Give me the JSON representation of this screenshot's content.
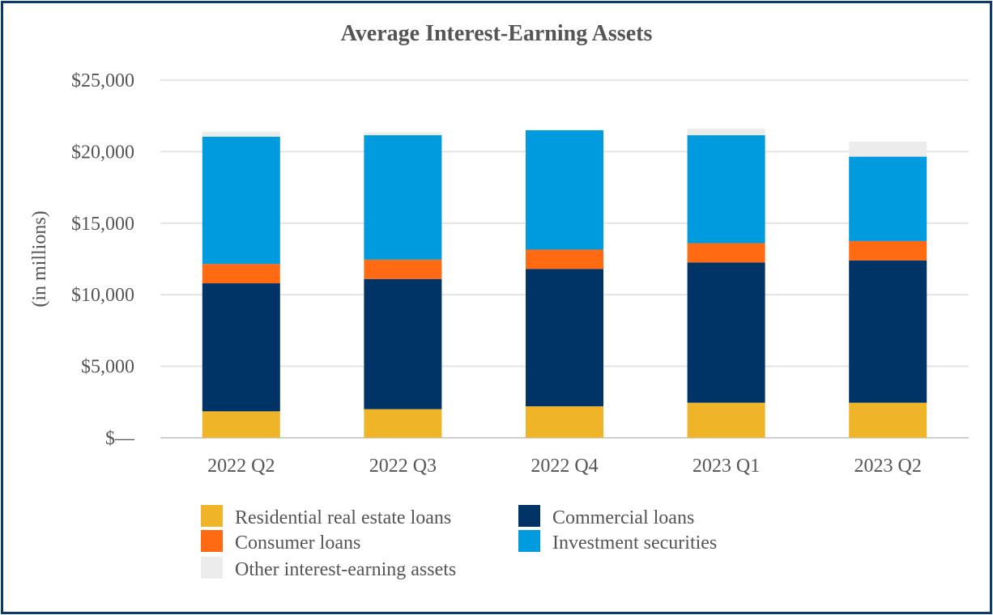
{
  "chart_data": {
    "type": "bar",
    "stacked": true,
    "title": "Average Interest-Earning Assets",
    "ylabel": "(in millions)",
    "xlabel": "",
    "ylim": [
      0,
      25000
    ],
    "y_ticks": [
      {
        "value": 0,
        "label": "$—"
      },
      {
        "value": 5000,
        "label": "$5,000"
      },
      {
        "value": 10000,
        "label": "$10,000"
      },
      {
        "value": 15000,
        "label": "$15,000"
      },
      {
        "value": 20000,
        "label": "$20,000"
      },
      {
        "value": 25000,
        "label": "$25,000"
      }
    ],
    "grid": true,
    "legend_position": "bottom",
    "categories": [
      "2022 Q2",
      "2022 Q3",
      "2022 Q4",
      "2023 Q1",
      "2023 Q2"
    ],
    "series": [
      {
        "name": "Residential real estate loans",
        "color": "#f0b429",
        "values": [
          1850,
          2000,
          2200,
          2450,
          2450
        ]
      },
      {
        "name": "Commercial loans",
        "color": "#003366",
        "values": [
          8950,
          9100,
          9600,
          9800,
          9950
        ]
      },
      {
        "name": "Consumer loans",
        "color": "#ff6a13",
        "values": [
          1350,
          1350,
          1350,
          1350,
          1350
        ]
      },
      {
        "name": "Investment securities",
        "color": "#009ade",
        "values": [
          8900,
          8700,
          8350,
          7550,
          5900
        ]
      },
      {
        "name": "Other interest-earning assets",
        "color": "#ececec",
        "values": [
          350,
          200,
          50,
          450,
          1050
        ]
      }
    ]
  }
}
